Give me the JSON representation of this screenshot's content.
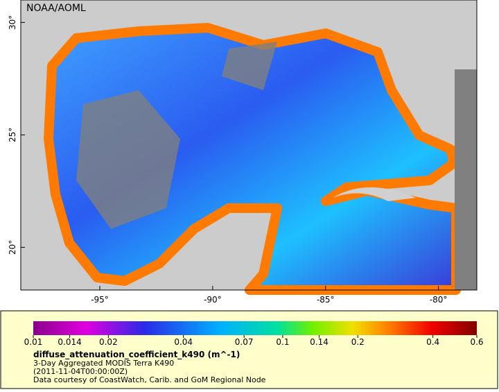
{
  "map": {
    "credit": "NOAA/AOML",
    "lonlim": [
      -98.5,
      -78.3
    ],
    "latlim": [
      18.1,
      31
    ],
    "lonticks": [
      {
        "value": -95,
        "label": "-95°"
      },
      {
        "value": -90,
        "label": "-90°"
      },
      {
        "value": -85,
        "label": "-85°"
      },
      {
        "value": -80,
        "label": "-80°"
      }
    ],
    "latticks": [
      {
        "value": 20,
        "label": "20°"
      },
      {
        "value": 25,
        "label": "25°"
      },
      {
        "value": 30,
        "label": "30°"
      }
    ]
  },
  "colorbar": {
    "scale": "log",
    "xlim": [
      0.01,
      0.6
    ],
    "ticks": [
      0.01,
      0.014,
      0.02,
      0.04,
      0.07,
      0.1,
      0.14,
      0.2,
      0.4,
      0.6
    ]
  },
  "caption": {
    "variable": "diffuse_attenuation_coefficient_k490 (m^-1)",
    "product": "3-Day Aggregated MODIS Terra K490",
    "time": "(2011-11-04T00:00:00Z)",
    "source": "Data courtesy of CoastWatch, Carib. and GoM Regional Node"
  }
}
